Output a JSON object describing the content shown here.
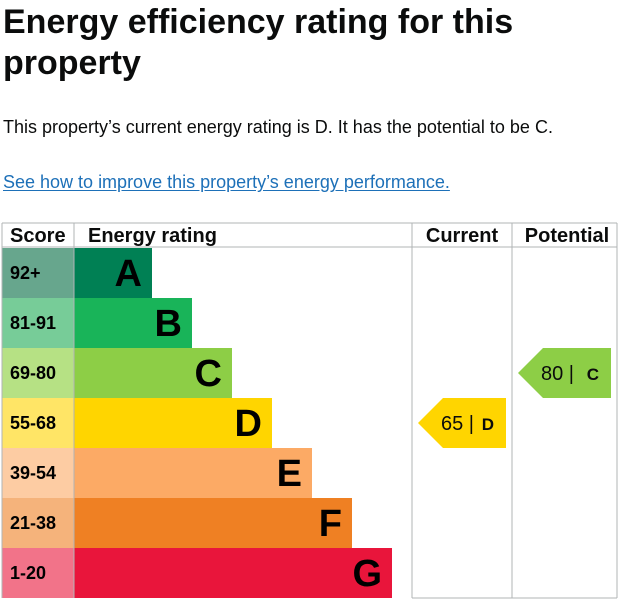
{
  "page": {
    "title": "Energy efficiency rating for this property",
    "summary": "This property’s current energy rating is D. It has the potential to be C.",
    "improve_link": "See how to improve this property’s energy performance."
  },
  "chart_data": {
    "type": "bar",
    "headers": {
      "score": "Score",
      "rating": "Energy rating",
      "current": "Current",
      "potential": "Potential"
    },
    "bands": [
      {
        "letter": "A",
        "score_range": "92+",
        "min": 92,
        "max": 100,
        "color": "#008054",
        "score_bg": "#67a68d",
        "text_color": "#000000"
      },
      {
        "letter": "B",
        "score_range": "81-91",
        "min": 81,
        "max": 91,
        "color": "#19b459",
        "score_bg": "#77cc98",
        "text_color": "#000000"
      },
      {
        "letter": "C",
        "score_range": "69-80",
        "min": 69,
        "max": 80,
        "color": "#8dce46",
        "score_bg": "#b6e184",
        "text_color": "#000000"
      },
      {
        "letter": "D",
        "score_range": "55-68",
        "min": 55,
        "max": 68,
        "color": "#ffd500",
        "score_bg": "#ffe566",
        "text_color": "#000000"
      },
      {
        "letter": "E",
        "score_range": "39-54",
        "min": 39,
        "max": 54,
        "color": "#fcaa65",
        "score_bg": "#fdcca3",
        "text_color": "#000000"
      },
      {
        "letter": "F",
        "score_range": "21-38",
        "min": 21,
        "max": 38,
        "color": "#ef8023",
        "score_bg": "#f5b37b",
        "text_color": "#000000"
      },
      {
        "letter": "G",
        "score_range": "1-20",
        "min": 1,
        "max": 20,
        "color": "#e9153b",
        "score_bg": "#f27389",
        "text_color": "#000000"
      }
    ],
    "current": {
      "score": 65,
      "score_label": "65 |",
      "band": "D",
      "color": "#ffd500"
    },
    "potential": {
      "score": 80,
      "score_label": "80 |",
      "band": "C",
      "color": "#8dce46"
    }
  }
}
